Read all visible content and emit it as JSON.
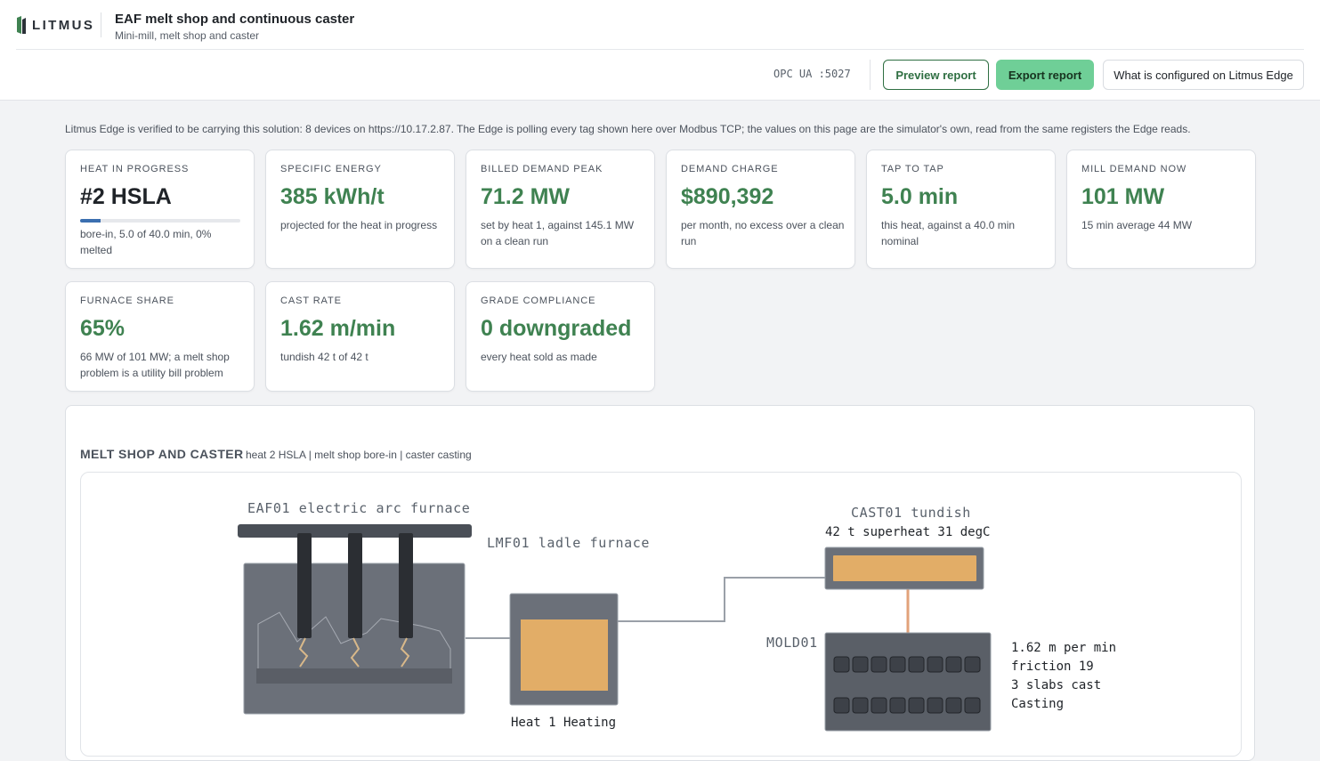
{
  "header": {
    "brand": "LITMUS",
    "title": "EAF melt shop and continuous caster",
    "subtitle": "Mini-mill, melt shop and caster",
    "opc": "OPC UA :5027",
    "preview_label": "Preview report",
    "export_label": "Export report",
    "config_label": "What is configured on Litmus Edge"
  },
  "notice": "Litmus Edge is verified to be carrying this solution: 8 devices on https://10.17.2.87. The Edge is polling every tag shown here over Modbus TCP; the values on this page are the simulator's own, read from the same registers the Edge reads.",
  "cards": {
    "heat": {
      "label": "HEAT IN PROGRESS",
      "value": "#2 HSLA",
      "progress": 0.125,
      "note": "bore-in, 5.0 of 40.0 min, 0% melted"
    },
    "energy": {
      "label": "SPECIFIC ENERGY",
      "value": "385 kWh/t",
      "note": "projected for the heat in progress"
    },
    "peak": {
      "label": "BILLED DEMAND PEAK",
      "value": "71.2 MW",
      "note": "set by heat 1, against 145.1 MW on a clean run"
    },
    "charge": {
      "label": "DEMAND CHARGE",
      "value": "$890,392",
      "note": "per month, no excess over a clean run"
    },
    "tap": {
      "label": "TAP TO TAP",
      "value": "5.0 min",
      "note": "this heat, against a 40.0 min nominal"
    },
    "mill": {
      "label": "MILL DEMAND NOW",
      "value": "101 MW",
      "note": "15 min average 44 MW"
    },
    "share": {
      "label": "FURNACE SHARE",
      "value": "65%",
      "note": "66 MW of 101 MW; a melt shop problem is a utility bill problem"
    },
    "cast": {
      "label": "CAST RATE",
      "value": "1.62 m/min",
      "note": "tundish 42 t of 42 t"
    },
    "grade": {
      "label": "GRADE COMPLIANCE",
      "value": "0 downgraded",
      "note": "every heat sold as made"
    }
  },
  "panel": {
    "title": "MELT SHOP AND CASTER",
    "subtitle": "heat 2 HSLA | melt shop bore-in | caster casting"
  },
  "diagram": {
    "eaf_label": "EAF01 electric arc furnace",
    "lmf_label": "LMF01 ladle furnace",
    "lmf_status": "Heat 1 Heating",
    "tundish_label": "CAST01 tundish",
    "tundish_status": "42 t superheat 31 degC",
    "mold_label": "MOLD01",
    "mold_rate": "1.62 m per min",
    "mold_friction": "friction 19",
    "mold_slabs": "3 slabs cast",
    "mold_state": "Casting"
  },
  "colors": {
    "accent_green": "#3f8251",
    "export_button": "#6fcf97",
    "progress_blue": "#3b6fb0",
    "steel_gray": "#6b7079",
    "molten": "#e2ad67"
  }
}
